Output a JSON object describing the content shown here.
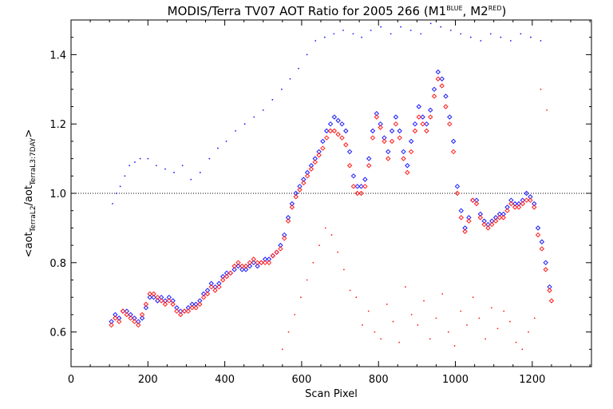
{
  "chart_data": {
    "type": "scatter",
    "title": {
      "main": "MODIS/Terra TV07 AOT Ratio for 2005 266 (M1",
      "sup1": "BLUE",
      "mid": ", M2",
      "sup2": "RED",
      "end": ")"
    },
    "xlabel": "Scan Pixel",
    "ylabel": {
      "open": "<aot",
      "sub1": "TerraL2",
      "slash": "/aot",
      "sub2": "TerraL3:7DAY",
      "close": ">"
    },
    "xlim": [
      0,
      1354
    ],
    "ylim": [
      0.5,
      1.5
    ],
    "x_ticks": [
      0,
      200,
      400,
      600,
      800,
      1000,
      1200
    ],
    "x_tick_labels": [
      "0",
      "200",
      "400",
      "600",
      "800",
      "1000",
      "1200"
    ],
    "y_ticks": [
      0.6,
      0.8,
      1.0,
      1.2,
      1.4
    ],
    "y_tick_labels": [
      "0.6",
      "0.8",
      "1.0",
      "1.2",
      "1.4"
    ],
    "reference_line": {
      "y": 1.0,
      "style": "dotted"
    },
    "colors": {
      "blue": "#1a1aff",
      "red": "#ff1a1a",
      "axis": "#000000"
    },
    "series": [
      {
        "name": "BLUE",
        "marker": "diamond",
        "color": "#1a1aff",
        "x": [
          105,
          115,
          125,
          135,
          145,
          155,
          165,
          175,
          185,
          195,
          205,
          215,
          225,
          235,
          245,
          255,
          265,
          275,
          285,
          295,
          305,
          315,
          325,
          335,
          345,
          355,
          365,
          375,
          385,
          395,
          405,
          415,
          425,
          435,
          445,
          455,
          465,
          475,
          485,
          495,
          505,
          515,
          525,
          535,
          545,
          555,
          565,
          575,
          585,
          595,
          605,
          615,
          625,
          635,
          645,
          655,
          665,
          675,
          685,
          695,
          705,
          715,
          725,
          735,
          745,
          755,
          765,
          775,
          785,
          795,
          805,
          815,
          825,
          835,
          845,
          855,
          865,
          875,
          885,
          895,
          905,
          915,
          925,
          935,
          945,
          955,
          965,
          975,
          985,
          995,
          1005,
          1015,
          1025,
          1035,
          1045,
          1055,
          1065,
          1075,
          1085,
          1095,
          1105,
          1115,
          1125,
          1135,
          1145,
          1155,
          1165,
          1175,
          1185,
          1195,
          1205,
          1215,
          1225,
          1235,
          1245
        ],
        "y": [
          0.63,
          0.65,
          0.64,
          0.66,
          0.66,
          0.65,
          0.64,
          0.63,
          0.64,
          0.67,
          0.7,
          0.7,
          0.69,
          0.7,
          0.69,
          0.7,
          0.69,
          0.67,
          0.66,
          0.66,
          0.67,
          0.68,
          0.68,
          0.69,
          0.71,
          0.72,
          0.74,
          0.73,
          0.74,
          0.76,
          0.77,
          0.77,
          0.78,
          0.79,
          0.78,
          0.78,
          0.79,
          0.8,
          0.79,
          0.8,
          0.81,
          0.81,
          0.82,
          0.83,
          0.85,
          0.88,
          0.93,
          0.97,
          1.0,
          1.02,
          1.04,
          1.06,
          1.08,
          1.1,
          1.12,
          1.15,
          1.18,
          1.2,
          1.22,
          1.21,
          1.2,
          1.18,
          1.12,
          1.05,
          1.02,
          1.02,
          1.04,
          1.1,
          1.18,
          1.23,
          1.2,
          1.16,
          1.12,
          1.18,
          1.22,
          1.18,
          1.12,
          1.08,
          1.15,
          1.2,
          1.25,
          1.22,
          1.2,
          1.24,
          1.3,
          1.35,
          1.33,
          1.28,
          1.22,
          1.15,
          1.02,
          0.95,
          0.9,
          0.93,
          0.98,
          0.98,
          0.94,
          0.92,
          0.91,
          0.92,
          0.93,
          0.94,
          0.94,
          0.96,
          0.98,
          0.97,
          0.97,
          0.98,
          1.0,
          0.99,
          0.97,
          0.9,
          0.86,
          0.8,
          0.73
        ]
      },
      {
        "name": "RED",
        "marker": "diamond",
        "color": "#ff1a1a",
        "x": [
          105,
          115,
          125,
          135,
          145,
          155,
          165,
          175,
          185,
          195,
          205,
          215,
          225,
          235,
          245,
          255,
          265,
          275,
          285,
          295,
          305,
          315,
          325,
          335,
          345,
          355,
          365,
          375,
          385,
          395,
          405,
          415,
          425,
          435,
          445,
          455,
          465,
          475,
          485,
          495,
          505,
          515,
          525,
          535,
          545,
          555,
          565,
          575,
          585,
          595,
          605,
          615,
          625,
          635,
          645,
          655,
          665,
          675,
          685,
          695,
          705,
          715,
          725,
          735,
          745,
          755,
          765,
          775,
          785,
          795,
          805,
          815,
          825,
          835,
          845,
          855,
          865,
          875,
          885,
          895,
          905,
          915,
          925,
          935,
          945,
          955,
          965,
          975,
          985,
          995,
          1005,
          1015,
          1025,
          1035,
          1045,
          1055,
          1065,
          1075,
          1085,
          1095,
          1105,
          1115,
          1125,
          1135,
          1145,
          1155,
          1165,
          1175,
          1185,
          1195,
          1205,
          1215,
          1225,
          1235,
          1245,
          1250
        ],
        "y": [
          0.62,
          0.64,
          0.63,
          0.66,
          0.65,
          0.64,
          0.63,
          0.62,
          0.65,
          0.68,
          0.71,
          0.71,
          0.7,
          0.69,
          0.68,
          0.69,
          0.68,
          0.66,
          0.65,
          0.66,
          0.66,
          0.67,
          0.67,
          0.68,
          0.7,
          0.71,
          0.73,
          0.72,
          0.73,
          0.75,
          0.76,
          0.77,
          0.79,
          0.8,
          0.79,
          0.79,
          0.8,
          0.81,
          0.8,
          0.8,
          0.8,
          0.8,
          0.82,
          0.83,
          0.84,
          0.87,
          0.92,
          0.96,
          0.99,
          1.01,
          1.03,
          1.05,
          1.07,
          1.09,
          1.11,
          1.13,
          1.16,
          1.18,
          1.18,
          1.17,
          1.16,
          1.14,
          1.08,
          1.02,
          1.0,
          1.0,
          1.02,
          1.08,
          1.16,
          1.22,
          1.19,
          1.15,
          1.1,
          1.15,
          1.2,
          1.16,
          1.1,
          1.06,
          1.12,
          1.18,
          1.22,
          1.2,
          1.18,
          1.22,
          1.28,
          1.33,
          1.31,
          1.25,
          1.2,
          1.12,
          1.0,
          0.93,
          0.89,
          0.92,
          0.98,
          0.97,
          0.93,
          0.91,
          0.9,
          0.91,
          0.92,
          0.93,
          0.93,
          0.95,
          0.97,
          0.96,
          0.96,
          0.97,
          0.98,
          0.98,
          0.96,
          0.88,
          0.84,
          0.78,
          0.72,
          0.69
        ]
      },
      {
        "name": "",
        "marker": "dot",
        "color": "#1a1aff",
        "x": [
          108,
          118,
          128,
          140,
          152,
          166,
          180,
          200,
          222,
          245,
          268,
          290,
          312,
          336,
          360,
          382,
          404,
          428,
          452,
          476,
          500,
          524,
          548,
          570,
          592,
          614,
          636,
          660,
          684,
          708,
          734,
          756,
          780,
          806,
          832,
          858,
          884,
          910,
          936,
          962,
          988,
          1014,
          1040,
          1066,
          1092,
          1118,
          1144,
          1170,
          1196,
          1222
        ],
        "y": [
          0.97,
          1.0,
          1.02,
          1.05,
          1.08,
          1.09,
          1.1,
          1.1,
          1.08,
          1.07,
          1.06,
          1.08,
          1.04,
          1.06,
          1.1,
          1.13,
          1.15,
          1.18,
          1.2,
          1.22,
          1.24,
          1.27,
          1.3,
          1.33,
          1.36,
          1.4,
          1.44,
          1.45,
          1.46,
          1.47,
          1.46,
          1.45,
          1.47,
          1.48,
          1.46,
          1.48,
          1.47,
          1.46,
          1.49,
          1.48,
          1.47,
          1.46,
          1.45,
          1.44,
          1.46,
          1.45,
          1.44,
          1.46,
          1.45,
          1.44
        ]
      },
      {
        "name": "",
        "marker": "dot",
        "color": "#ff1a1a",
        "x": [
          550,
          566,
          582,
          598,
          614,
          630,
          646,
          662,
          678,
          694,
          710,
          726,
          742,
          758,
          774,
          790,
          806,
          822,
          838,
          854,
          870,
          886,
          902,
          918,
          934,
          950,
          966,
          982,
          998,
          1014,
          1030,
          1046,
          1062,
          1078,
          1094,
          1110,
          1126,
          1142,
          1158,
          1174,
          1190,
          1206,
          1222,
          1238
        ],
        "y": [
          0.55,
          0.6,
          0.65,
          0.7,
          0.75,
          0.8,
          0.85,
          0.9,
          0.88,
          0.83,
          0.78,
          0.72,
          0.7,
          0.62,
          0.66,
          0.6,
          0.58,
          0.68,
          0.63,
          0.57,
          0.73,
          0.65,
          0.62,
          0.69,
          0.58,
          0.64,
          0.71,
          0.6,
          0.56,
          0.66,
          0.62,
          0.7,
          0.64,
          0.58,
          0.67,
          0.61,
          0.66,
          0.63,
          0.57,
          0.55,
          0.6,
          0.64,
          1.3,
          1.24
        ]
      }
    ]
  }
}
